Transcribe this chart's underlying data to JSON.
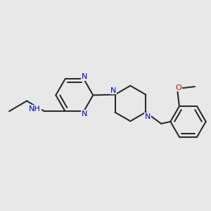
{
  "background_color": "#e8e8e8",
  "bond_color": "#2d2d2d",
  "nitrogen_color": "#0000cc",
  "oxygen_color": "#cc0000",
  "carbon_color": "#2d2d2d",
  "line_width": 1.5,
  "figsize": [
    3.0,
    3.0
  ],
  "dpi": 100,
  "xlim": [
    0,
    10
  ],
  "ylim": [
    0,
    10
  ]
}
